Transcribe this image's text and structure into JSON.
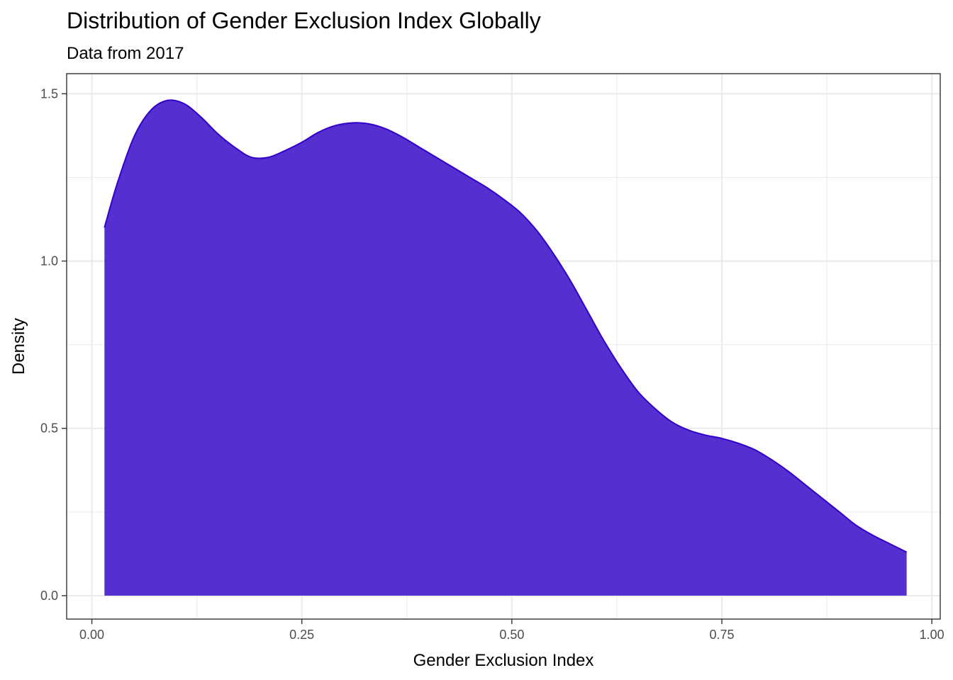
{
  "chart_data": {
    "type": "area",
    "title": "Distribution of Gender Exclusion Index Globally",
    "subtitle": "Data from 2017",
    "xlabel": "Gender Exclusion Index",
    "ylabel": "Density",
    "xlim": [
      -0.03,
      1.01
    ],
    "ylim": [
      -0.07,
      1.56
    ],
    "x_ticks": [
      {
        "value": 0,
        "label": "0.00"
      },
      {
        "value": 0.25,
        "label": "0.25"
      },
      {
        "value": 0.5,
        "label": "0.50"
      },
      {
        "value": 0.75,
        "label": "0.75"
      },
      {
        "value": 1,
        "label": "1.00"
      }
    ],
    "y_ticks": [
      {
        "value": 0,
        "label": "0.0"
      },
      {
        "value": 0.5,
        "label": "0.5"
      },
      {
        "value": 1,
        "label": "1.0"
      },
      {
        "value": 1.5,
        "label": "1.5"
      }
    ],
    "x_minor_grid": [
      0.125,
      0.375,
      0.625,
      0.875
    ],
    "y_minor_grid": [
      0.25,
      0.75,
      1.25
    ],
    "grid": true,
    "fill_color": "#4418CC",
    "fill_opacity": 0.9,
    "line_color": "#3300CC",
    "series": [
      {
        "x": [
          0.015,
          0.03,
          0.05,
          0.07,
          0.09,
          0.11,
          0.13,
          0.15,
          0.17,
          0.19,
          0.21,
          0.23,
          0.25,
          0.27,
          0.29,
          0.31,
          0.33,
          0.35,
          0.37,
          0.39,
          0.41,
          0.43,
          0.45,
          0.47,
          0.49,
          0.51,
          0.53,
          0.55,
          0.57,
          0.59,
          0.61,
          0.63,
          0.65,
          0.67,
          0.69,
          0.71,
          0.73,
          0.75,
          0.77,
          0.79,
          0.81,
          0.83,
          0.85,
          0.87,
          0.89,
          0.91,
          0.93,
          0.95,
          0.97
        ],
        "y": [
          1.1,
          1.23,
          1.37,
          1.45,
          1.48,
          1.47,
          1.43,
          1.38,
          1.34,
          1.31,
          1.31,
          1.33,
          1.355,
          1.385,
          1.405,
          1.413,
          1.41,
          1.395,
          1.37,
          1.34,
          1.31,
          1.28,
          1.25,
          1.22,
          1.185,
          1.145,
          1.09,
          1.02,
          0.94,
          0.85,
          0.76,
          0.68,
          0.61,
          0.56,
          0.52,
          0.495,
          0.48,
          0.47,
          0.455,
          0.435,
          0.405,
          0.37,
          0.33,
          0.29,
          0.25,
          0.21,
          0.18,
          0.155,
          0.13
        ]
      }
    ]
  }
}
